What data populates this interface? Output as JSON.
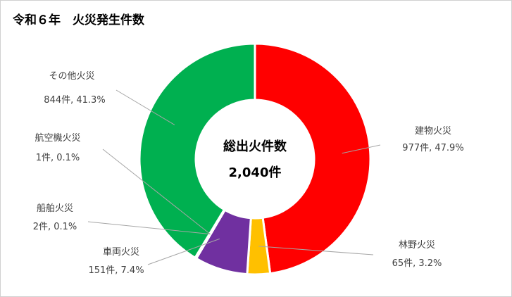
{
  "chart_data": {
    "type": "pie",
    "title": "令和６年　火災発生件数",
    "center_label": "総出火件数",
    "center_value": "2,040件",
    "slices": [
      {
        "name": "建物火災",
        "value": 977,
        "value_label": "977件, 47.9%",
        "color": "#ff0000"
      },
      {
        "name": "林野火災",
        "value": 65,
        "value_label": "65件, 3.2%",
        "color": "#ffc000"
      },
      {
        "name": "車両火災",
        "value": 151,
        "value_label": "151件, 7.4%",
        "color": "#7030a0"
      },
      {
        "name": "船舶火災",
        "value": 2,
        "value_label": "2件, 0.1%",
        "color": "#2e75b6"
      },
      {
        "name": "航空機火災",
        "value": 1,
        "value_label": "1件, 0.1%",
        "color": "#ed7d31"
      },
      {
        "name": "その他火災",
        "value": 844,
        "value_label": "844件, 41.3%",
        "color": "#00b050"
      }
    ]
  }
}
